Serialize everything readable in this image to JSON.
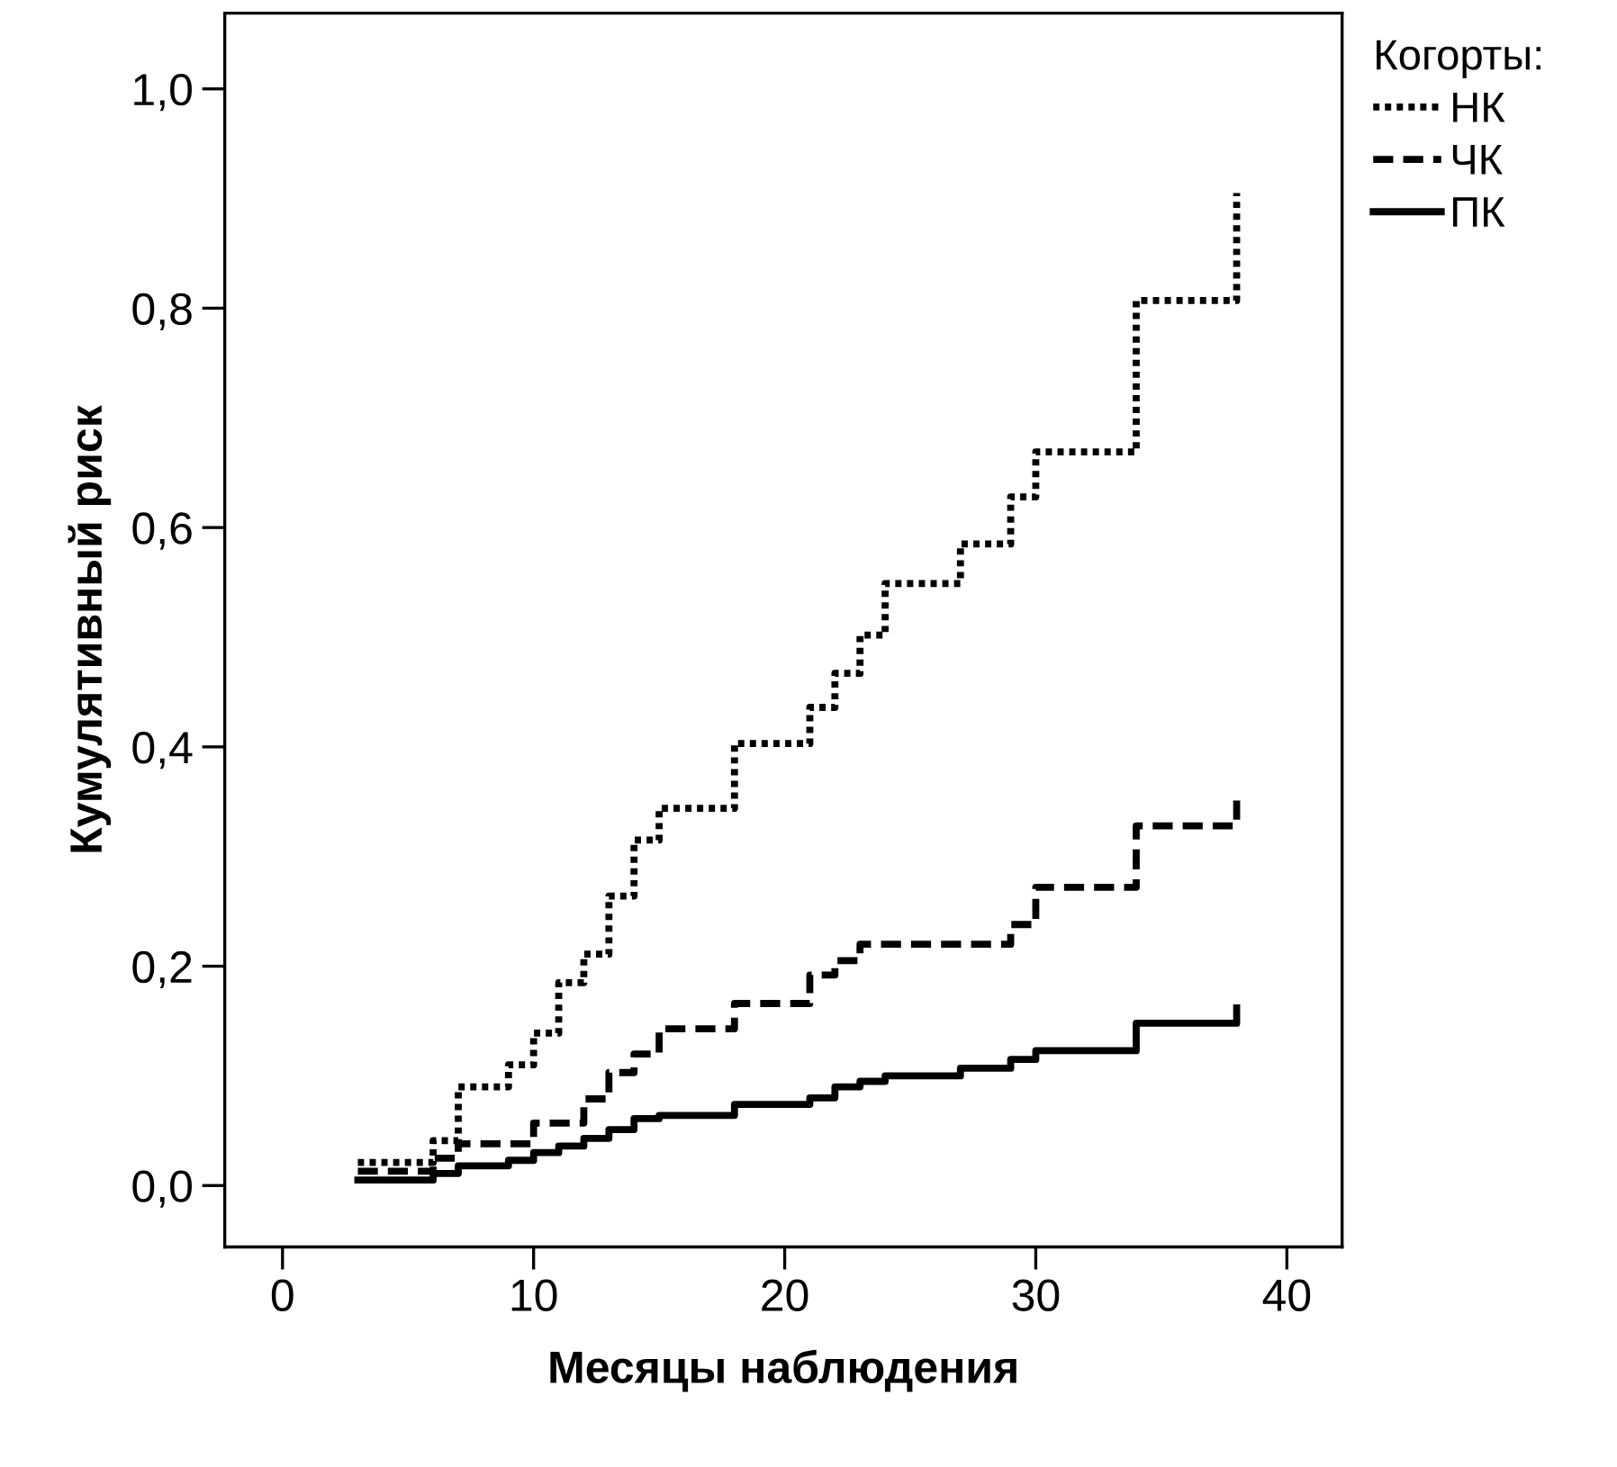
{
  "chart_data": {
    "type": "step",
    "xlabel": "Месяцы наблюдения",
    "ylabel": "Кумулятивный риск",
    "legend_title": "Когорты:",
    "xlim": [
      -2.3,
      42.2
    ],
    "ylim": [
      -0.056,
      1.069
    ],
    "xticks": [
      0,
      10,
      20,
      30,
      40
    ],
    "yticks": [
      {
        "value": 0,
        "label": "0,0"
      },
      {
        "value": 0.2,
        "label": "0,2"
      },
      {
        "value": 0.4,
        "label": "0,4"
      },
      {
        "value": 0.6,
        "label": "0,6"
      },
      {
        "value": 0.8,
        "label": "0,8"
      },
      {
        "value": 1.0,
        "label": "1,0"
      }
    ],
    "grid": false,
    "legend": "top right",
    "series": [
      {
        "name": "НК",
        "color": "#000000",
        "line_style": "dotted",
        "x": [
          3,
          6,
          7,
          9,
          10,
          11,
          12,
          13,
          14,
          15,
          18,
          21,
          22,
          23,
          24,
          27,
          29,
          30,
          34,
          38
        ],
        "values": [
          0.021,
          0.041,
          0.09,
          0.11,
          0.139,
          0.185,
          0.211,
          0.264,
          0.315,
          0.344,
          0.403,
          0.436,
          0.467,
          0.502,
          0.549,
          0.585,
          0.628,
          0.669,
          0.807,
          0.905
        ]
      },
      {
        "name": "ЧК",
        "color": "#000000",
        "line_style": "dashed",
        "x": [
          3,
          6,
          7,
          10,
          12,
          13,
          14,
          15,
          18,
          21,
          22,
          23,
          29,
          30,
          34,
          38
        ],
        "values": [
          0.013,
          0.025,
          0.038,
          0.057,
          0.079,
          0.103,
          0.12,
          0.143,
          0.166,
          0.192,
          0.205,
          0.22,
          0.238,
          0.272,
          0.328,
          0.351
        ]
      },
      {
        "name": "ПК",
        "color": "#000000",
        "line_style": "solid",
        "x": [
          3,
          6,
          7,
          9,
          10,
          11,
          12,
          13,
          14,
          15,
          18,
          21,
          22,
          23,
          24,
          27,
          29,
          30,
          34,
          38
        ],
        "values": [
          0.005,
          0.011,
          0.018,
          0.023,
          0.03,
          0.036,
          0.043,
          0.051,
          0.061,
          0.064,
          0.074,
          0.08,
          0.09,
          0.095,
          0.1,
          0.107,
          0.115,
          0.123,
          0.148,
          0.162
        ]
      }
    ]
  }
}
